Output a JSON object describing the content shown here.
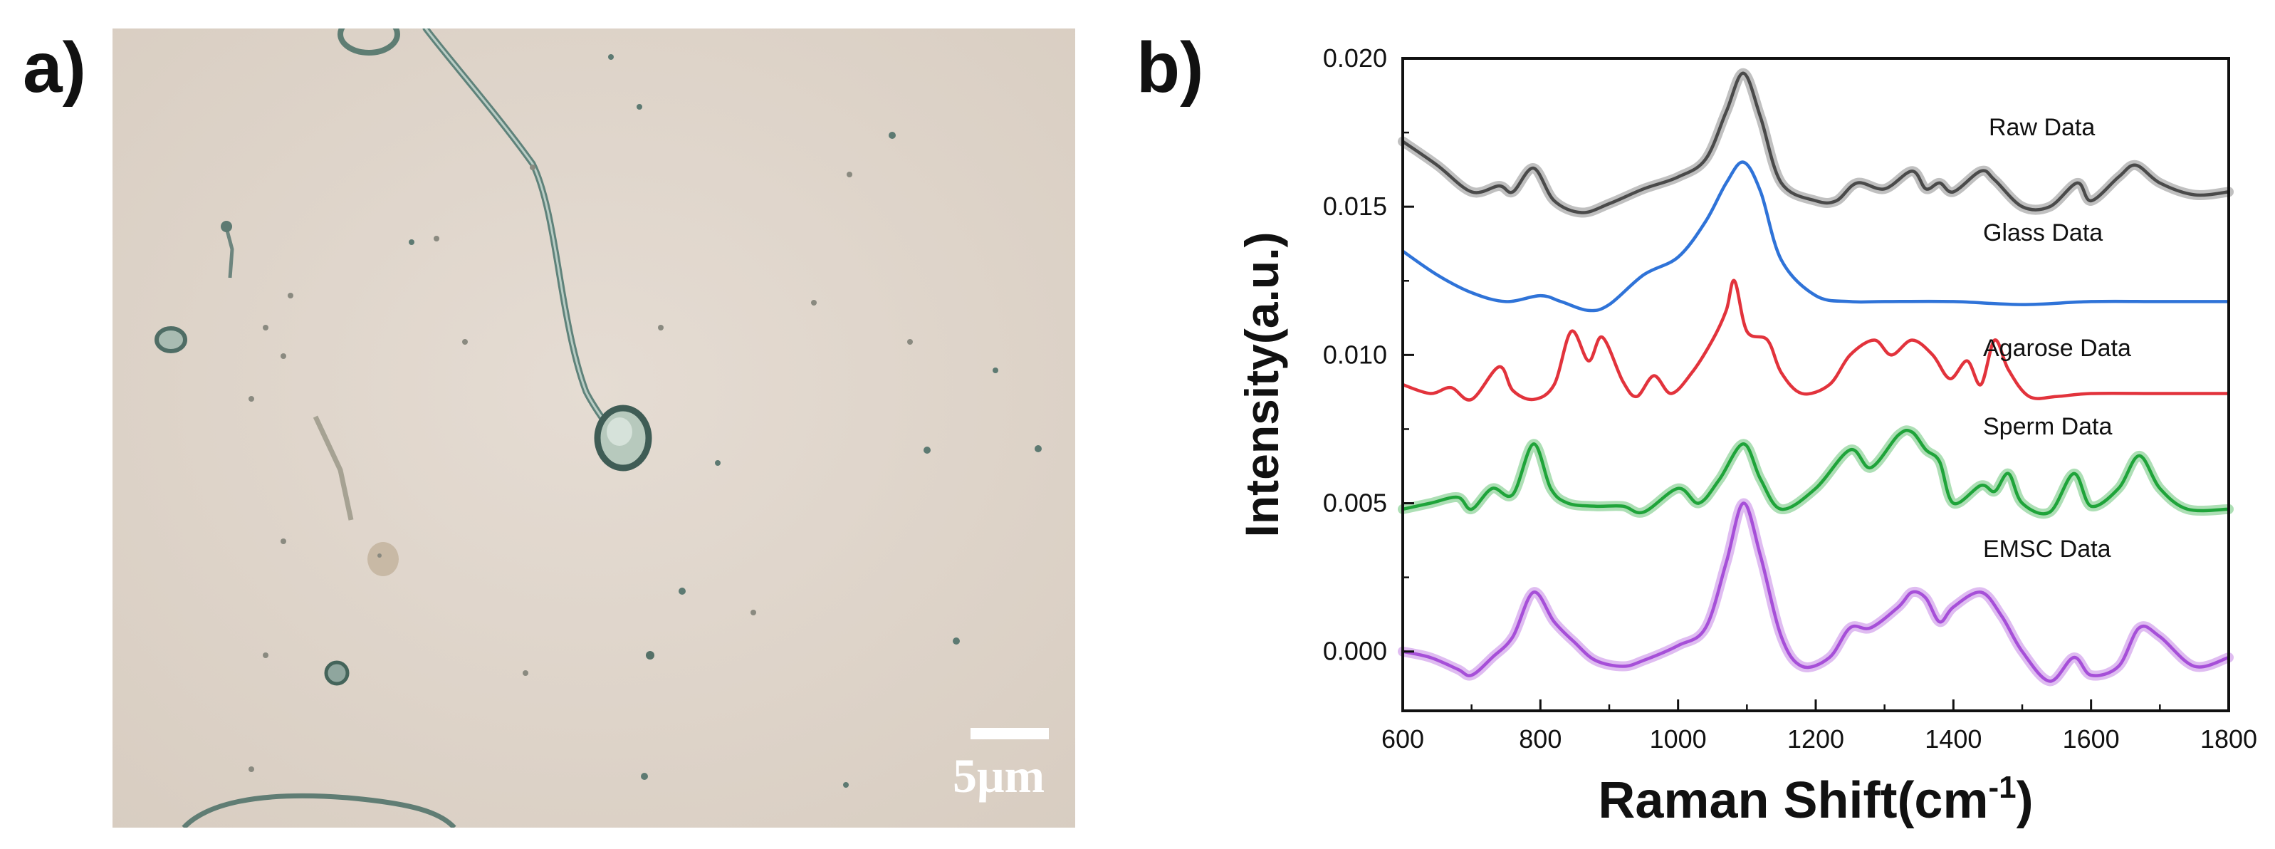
{
  "panels": {
    "a_label": "a)",
    "b_label": "b)"
  },
  "micrograph": {
    "scale_bar_text": "5μm"
  },
  "chart_data": {
    "type": "line",
    "title": "",
    "xlabel": "Raman Shift(cm",
    "xlabel_sup": "-1",
    "xlabel_close": ")",
    "ylabel": "Intensity(a.u.)",
    "xlim": [
      600,
      1800
    ],
    "ylim": [
      -0.002,
      0.02
    ],
    "xticks": [
      600,
      800,
      1000,
      1200,
      1400,
      1600,
      1800
    ],
    "yticks": [
      0.0,
      0.005,
      0.01,
      0.015,
      0.02
    ],
    "ytick_labels": [
      "0.000",
      "0.005",
      "0.010",
      "0.015",
      "0.020"
    ],
    "series": [
      {
        "name": "Raw Data",
        "color": "#4a4a4a",
        "band_color": "#b5b5b5",
        "x": [
          600,
          650,
          700,
          740,
          760,
          790,
          820,
          860,
          900,
          950,
          1000,
          1040,
          1070,
          1095,
          1120,
          1150,
          1200,
          1230,
          1260,
          1300,
          1340,
          1360,
          1380,
          1400,
          1440,
          1460,
          1500,
          1540,
          1580,
          1600,
          1640,
          1665,
          1700,
          1750,
          1800
        ],
        "y": [
          0.0172,
          0.0164,
          0.0155,
          0.0157,
          0.0155,
          0.0163,
          0.0152,
          0.0148,
          0.0151,
          0.0156,
          0.016,
          0.0166,
          0.0182,
          0.0195,
          0.018,
          0.0158,
          0.0152,
          0.0152,
          0.0158,
          0.0156,
          0.0162,
          0.0156,
          0.0158,
          0.0155,
          0.0162,
          0.0159,
          0.015,
          0.015,
          0.0158,
          0.0152,
          0.016,
          0.0164,
          0.0158,
          0.0154,
          0.0155
        ]
      },
      {
        "name": "Glass Data",
        "color": "#2f73d8",
        "x": [
          600,
          650,
          700,
          750,
          800,
          830,
          870,
          900,
          950,
          1000,
          1040,
          1070,
          1095,
          1120,
          1150,
          1200,
          1250,
          1300,
          1400,
          1500,
          1600,
          1700,
          1800
        ],
        "y": [
          0.0135,
          0.0127,
          0.0121,
          0.0118,
          0.012,
          0.0118,
          0.0115,
          0.0117,
          0.0127,
          0.0133,
          0.0145,
          0.0158,
          0.0165,
          0.0155,
          0.0132,
          0.012,
          0.0118,
          0.0118,
          0.0118,
          0.0117,
          0.0118,
          0.0118,
          0.0118
        ]
      },
      {
        "name": "Agarose Data",
        "color": "#e2333c",
        "x": [
          600,
          640,
          670,
          700,
          740,
          760,
          790,
          820,
          845,
          870,
          890,
          920,
          940,
          965,
          990,
          1020,
          1050,
          1070,
          1082,
          1100,
          1130,
          1150,
          1180,
          1220,
          1250,
          1285,
          1310,
          1340,
          1370,
          1395,
          1420,
          1440,
          1460,
          1480,
          1510,
          1550,
          1600,
          1700,
          1800
        ],
        "y": [
          0.009,
          0.0087,
          0.0089,
          0.0085,
          0.0096,
          0.0088,
          0.0085,
          0.009,
          0.0108,
          0.0098,
          0.0106,
          0.0091,
          0.0086,
          0.0093,
          0.0087,
          0.0094,
          0.0105,
          0.0115,
          0.0125,
          0.0108,
          0.0105,
          0.0094,
          0.0087,
          0.009,
          0.01,
          0.0105,
          0.01,
          0.0105,
          0.01,
          0.0092,
          0.0098,
          0.009,
          0.0105,
          0.0095,
          0.0086,
          0.0086,
          0.0087,
          0.0087,
          0.0087
        ]
      },
      {
        "name": "Sperm Data",
        "color": "#1fa43a",
        "band_color": "#9fd9a8",
        "x": [
          600,
          640,
          680,
          700,
          730,
          760,
          790,
          815,
          840,
          880,
          920,
          950,
          1000,
          1030,
          1060,
          1095,
          1120,
          1150,
          1200,
          1250,
          1280,
          1320,
          1340,
          1360,
          1380,
          1400,
          1440,
          1460,
          1480,
          1500,
          1540,
          1575,
          1600,
          1640,
          1670,
          1700,
          1740,
          1800
        ],
        "y": [
          0.0048,
          0.005,
          0.0052,
          0.0048,
          0.0055,
          0.0053,
          0.007,
          0.0055,
          0.005,
          0.0049,
          0.0049,
          0.0047,
          0.0055,
          0.005,
          0.0058,
          0.007,
          0.0058,
          0.0048,
          0.0055,
          0.0068,
          0.0062,
          0.0073,
          0.0074,
          0.0068,
          0.0064,
          0.005,
          0.0056,
          0.0054,
          0.006,
          0.005,
          0.0047,
          0.006,
          0.0049,
          0.0055,
          0.0066,
          0.0055,
          0.0048,
          0.0048
        ]
      },
      {
        "name": "EMSC Data",
        "color": "#a64fd8",
        "band_color": "#d9b0ee",
        "x": [
          600,
          640,
          680,
          700,
          730,
          760,
          790,
          820,
          850,
          880,
          920,
          950,
          1000,
          1040,
          1070,
          1095,
          1120,
          1150,
          1180,
          1220,
          1250,
          1280,
          1320,
          1340,
          1360,
          1380,
          1400,
          1440,
          1470,
          1500,
          1540,
          1575,
          1600,
          1640,
          1670,
          1700,
          1750,
          1800
        ],
        "y": [
          0.0,
          -0.0002,
          -0.0006,
          -0.0008,
          -0.0002,
          0.0005,
          0.002,
          0.001,
          0.0003,
          -0.0003,
          -0.0005,
          -0.0003,
          0.0002,
          0.0008,
          0.003,
          0.005,
          0.0032,
          0.0005,
          -0.0005,
          -0.0002,
          0.0008,
          0.0008,
          0.0015,
          0.002,
          0.0018,
          0.001,
          0.0015,
          0.002,
          0.0012,
          0.0,
          -0.001,
          -0.0002,
          -0.0008,
          -0.0005,
          0.0008,
          0.0005,
          -0.0005,
          -0.0002
        ]
      }
    ]
  }
}
